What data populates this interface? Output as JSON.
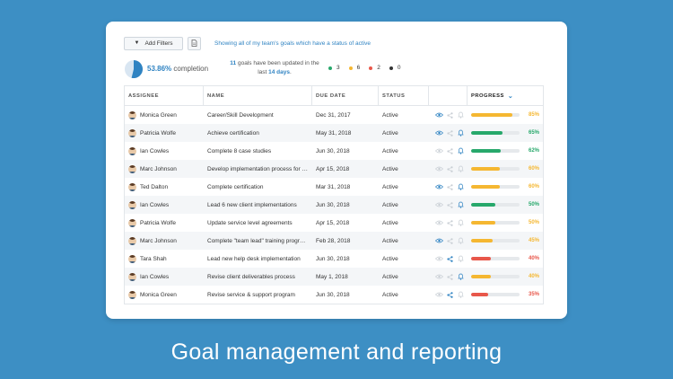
{
  "toolbar": {
    "add_filters_label": "Add Filters",
    "filter_description": "Showing all of my team's goals which have a status of active"
  },
  "summary": {
    "completion_percent": "53.86%",
    "completion_label": "completion",
    "completion_value": 0.5386,
    "updated_count": "11",
    "updated_text_1": "goals have been updated in the",
    "updated_text_2": "last",
    "updated_days": "14 days",
    "updated_period": ".",
    "status_counts": [
      {
        "color": "#27a86b",
        "count": "3"
      },
      {
        "color": "#f5b731",
        "count": "6"
      },
      {
        "color": "#e8574a",
        "count": "2"
      },
      {
        "color": "#333333",
        "count": "0"
      }
    ]
  },
  "table": {
    "headers": {
      "assignee": "ASSIGNEE",
      "name": "NAME",
      "due_date": "DUE DATE",
      "status": "STATUS",
      "progress": "PROGRESS"
    },
    "rows": [
      {
        "assignee": "Monica Green",
        "name": "Career/Skill Development",
        "due": "Dec 31, 2017",
        "status": "Active",
        "progress": 85,
        "progress_label": "85%",
        "color": "#f5b731",
        "eye": true,
        "bell": false,
        "share": false
      },
      {
        "assignee": "Patricia Wolfe",
        "name": "Achieve certification",
        "due": "May 31, 2018",
        "status": "Active",
        "progress": 65,
        "progress_label": "65%",
        "color": "#27a86b",
        "eye": true,
        "bell": true,
        "share": false
      },
      {
        "assignee": "Ian Cowles",
        "name": "Complete 8 case studies",
        "due": "Jun 30, 2018",
        "status": "Active",
        "progress": 62,
        "progress_label": "62%",
        "color": "#27a86b",
        "eye": false,
        "bell": true,
        "share": false
      },
      {
        "assignee": "Marc Johnson",
        "name": "Develop implementation process for …",
        "due": "Apr 15, 2018",
        "status": "Active",
        "progress": 60,
        "progress_label": "60%",
        "color": "#f5b731",
        "eye": false,
        "bell": false,
        "share": false
      },
      {
        "assignee": "Ted Dalton",
        "name": "Complete certification",
        "due": "Mar 31, 2018",
        "status": "Active",
        "progress": 60,
        "progress_label": "60%",
        "color": "#f5b731",
        "eye": true,
        "bell": true,
        "share": false
      },
      {
        "assignee": "Ian Cowles",
        "name": "Lead 6 new client implementations",
        "due": "Jun 30, 2018",
        "status": "Active",
        "progress": 50,
        "progress_label": "50%",
        "color": "#27a86b",
        "eye": false,
        "bell": true,
        "share": false
      },
      {
        "assignee": "Patricia Wolfe",
        "name": "Update service level agreements",
        "due": "Apr 15, 2018",
        "status": "Active",
        "progress": 50,
        "progress_label": "50%",
        "color": "#f5b731",
        "eye": false,
        "bell": false,
        "share": false
      },
      {
        "assignee": "Marc Johnson",
        "name": "Complete \"team lead\" training progr…",
        "due": "Feb 28, 2018",
        "status": "Active",
        "progress": 45,
        "progress_label": "45%",
        "color": "#f5b731",
        "eye": true,
        "bell": false,
        "share": false
      },
      {
        "assignee": "Tara Shah",
        "name": "Lead new help desk implementation",
        "due": "Jun 30, 2018",
        "status": "Active",
        "progress": 40,
        "progress_label": "40%",
        "color": "#e8574a",
        "eye": false,
        "bell": false,
        "share": true
      },
      {
        "assignee": "Ian Cowles",
        "name": "Revise client deliverables process",
        "due": "May 1, 2018",
        "status": "Active",
        "progress": 40,
        "progress_label": "40%",
        "color": "#f5b731",
        "eye": false,
        "bell": true,
        "share": false
      },
      {
        "assignee": "Monica Green",
        "name": "Revise service & support program",
        "due": "Jun 30, 2018",
        "status": "Active",
        "progress": 35,
        "progress_label": "35%",
        "color": "#e8574a",
        "eye": false,
        "bell": false,
        "share": true
      }
    ]
  },
  "headline": "Goal management and reporting",
  "colors": {
    "background": "#3d8fc4",
    "accent": "#2f83c2",
    "green": "#27a86b",
    "yellow": "#f5b731",
    "red": "#e8574a"
  }
}
